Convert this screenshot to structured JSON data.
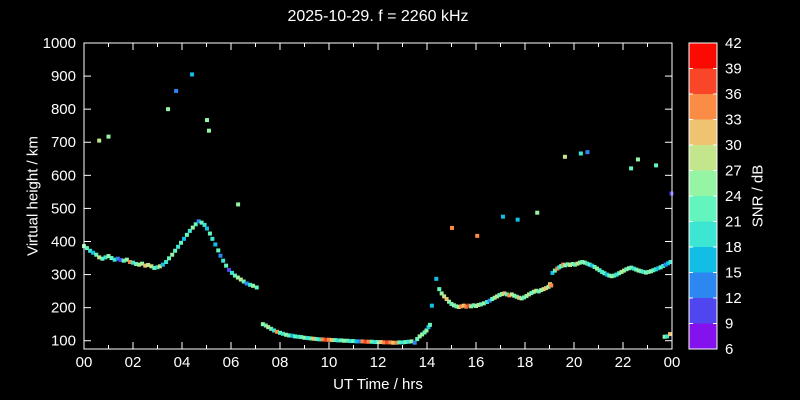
{
  "title": "2025-10-29. f = 2260 kHz",
  "chart_data": {
    "type": "scatter",
    "title": "2025-10-29. f = 2260 kHz",
    "xlabel": "UT Time / hrs",
    "ylabel": "Virtual height / km",
    "xlim": [
      0,
      24
    ],
    "ylim": [
      75,
      1000
    ],
    "grid": false,
    "background_color": "#000000",
    "text_color": "#ffffff",
    "marker": "square",
    "marker_size_px": 4,
    "x_ticks": {
      "major_values": [
        0,
        2,
        4,
        6,
        8,
        10,
        12,
        14,
        16,
        18,
        20,
        22,
        24
      ],
      "major_labels": [
        "00",
        "02",
        "04",
        "06",
        "08",
        "10",
        "12",
        "14",
        "16",
        "18",
        "20",
        "22",
        "00"
      ],
      "minor_step": 1
    },
    "y_ticks": {
      "values": [
        100,
        200,
        300,
        400,
        500,
        600,
        700,
        800,
        900,
        1000
      ],
      "labels": [
        "100",
        "200",
        "300",
        "400",
        "500",
        "600",
        "700",
        "800",
        "900",
        "1000"
      ]
    },
    "colorbar": {
      "label": "SNR / dB",
      "min": 6,
      "max": 42,
      "step": 3,
      "tick_labels": [
        "6",
        "9",
        "12",
        "15",
        "18",
        "21",
        "24",
        "27",
        "30",
        "33",
        "36",
        "39",
        "42"
      ],
      "colors_low_to_high": [
        "#8312ee",
        "#5046f0",
        "#2d87f0",
        "#12bee6",
        "#3ce6d2",
        "#64f5be",
        "#96f5a5",
        "#c3e68c",
        "#f0c371",
        "#fa8c46",
        "#fa4628",
        "#fa0a00"
      ]
    },
    "points_format": [
      "ut_hours",
      "virtual_height_km",
      "snr_db"
    ],
    "points": [
      [
        0.0,
        386,
        25
      ],
      [
        0.12,
        380,
        22
      ],
      [
        0.25,
        372,
        19
      ],
      [
        0.37,
        366,
        16
      ],
      [
        0.5,
        360,
        22
      ],
      [
        0.62,
        352,
        28
      ],
      [
        0.75,
        348,
        22
      ],
      [
        0.88,
        352,
        19
      ],
      [
        1.0,
        356,
        25
      ],
      [
        1.12,
        350,
        22
      ],
      [
        1.25,
        345,
        19
      ],
      [
        1.38,
        348,
        13
      ],
      [
        1.5,
        344,
        10
      ],
      [
        1.62,
        342,
        22
      ],
      [
        1.75,
        345,
        25
      ],
      [
        1.88,
        338,
        34
      ],
      [
        2.0,
        336,
        19
      ],
      [
        2.12,
        332,
        22
      ],
      [
        2.25,
        330,
        28
      ],
      [
        2.37,
        333,
        25
      ],
      [
        2.5,
        327,
        31
      ],
      [
        2.62,
        329,
        28
      ],
      [
        2.75,
        325,
        28
      ],
      [
        2.87,
        320,
        22
      ],
      [
        3.0,
        322,
        19
      ],
      [
        3.1,
        325,
        28
      ],
      [
        3.22,
        330,
        16
      ],
      [
        3.35,
        338,
        19
      ],
      [
        3.47,
        349,
        22
      ],
      [
        3.6,
        360,
        25
      ],
      [
        3.72,
        372,
        22
      ],
      [
        3.84,
        384,
        19
      ],
      [
        3.96,
        396,
        22
      ],
      [
        4.08,
        408,
        16
      ],
      [
        4.2,
        420,
        22
      ],
      [
        4.32,
        432,
        19
      ],
      [
        4.44,
        442,
        25
      ],
      [
        4.56,
        452,
        22
      ],
      [
        4.68,
        461,
        13
      ],
      [
        4.8,
        457,
        22
      ],
      [
        4.92,
        450,
        19
      ],
      [
        5.02,
        439,
        16
      ],
      [
        5.14,
        424,
        22
      ],
      [
        5.24,
        408,
        19
      ],
      [
        5.36,
        391,
        16
      ],
      [
        5.48,
        373,
        22
      ],
      [
        5.57,
        357,
        13
      ],
      [
        5.68,
        342,
        19
      ],
      [
        5.8,
        327,
        22
      ],
      [
        5.92,
        314,
        10
      ],
      [
        6.04,
        305,
        19
      ],
      [
        6.16,
        297,
        22
      ],
      [
        6.28,
        291,
        25
      ],
      [
        6.4,
        285,
        28
      ],
      [
        6.52,
        279,
        22
      ],
      [
        6.64,
        273,
        13
      ],
      [
        6.78,
        269,
        19
      ],
      [
        6.9,
        266,
        25
      ],
      [
        7.05,
        261,
        22
      ],
      [
        0.62,
        705,
        28
      ],
      [
        1.0,
        717,
        25
      ],
      [
        3.43,
        800,
        25
      ],
      [
        3.76,
        855,
        13
      ],
      [
        4.41,
        905,
        16
      ],
      [
        5.02,
        767,
        25
      ],
      [
        5.1,
        735,
        25
      ],
      [
        6.29,
        512,
        25
      ],
      [
        7.3,
        150,
        25
      ],
      [
        7.42,
        146,
        22
      ],
      [
        7.52,
        141,
        28
      ],
      [
        7.64,
        136,
        22
      ],
      [
        7.76,
        131,
        19
      ],
      [
        7.88,
        127,
        34
      ],
      [
        8.0,
        124,
        22
      ],
      [
        8.12,
        121,
        19
      ],
      [
        8.25,
        118,
        25
      ],
      [
        8.37,
        116,
        22
      ],
      [
        8.5,
        115,
        16
      ],
      [
        8.62,
        113,
        22
      ],
      [
        8.75,
        112,
        19
      ],
      [
        8.87,
        111,
        22
      ],
      [
        9.0,
        109,
        25
      ],
      [
        9.12,
        108,
        19
      ],
      [
        9.25,
        107,
        22
      ],
      [
        9.37,
        106,
        31
      ],
      [
        9.5,
        105,
        22
      ],
      [
        9.62,
        104,
        19
      ],
      [
        9.75,
        104,
        34
      ],
      [
        9.87,
        103,
        37
      ],
      [
        10.0,
        103,
        34
      ],
      [
        10.12,
        102,
        31
      ],
      [
        10.25,
        102,
        22
      ],
      [
        10.37,
        101,
        19
      ],
      [
        10.5,
        101,
        22
      ],
      [
        10.62,
        100,
        25
      ],
      [
        10.75,
        100,
        22
      ],
      [
        10.87,
        99,
        19
      ],
      [
        11.0,
        99,
        22
      ],
      [
        11.12,
        98,
        16
      ],
      [
        11.25,
        98,
        13
      ],
      [
        11.37,
        98,
        34
      ],
      [
        11.5,
        97,
        37
      ],
      [
        11.62,
        97,
        34
      ],
      [
        11.75,
        97,
        22
      ],
      [
        11.87,
        96,
        19
      ],
      [
        12.0,
        96,
        22
      ],
      [
        12.12,
        96,
        31
      ],
      [
        12.25,
        95,
        34
      ],
      [
        12.37,
        95,
        37
      ],
      [
        12.5,
        95,
        34
      ],
      [
        12.62,
        94,
        31
      ],
      [
        12.75,
        94,
        34
      ],
      [
        12.87,
        95,
        22
      ],
      [
        13.0,
        95,
        19
      ],
      [
        13.12,
        96,
        22
      ],
      [
        13.25,
        97,
        19
      ],
      [
        13.37,
        98,
        25
      ],
      [
        13.5,
        94,
        13
      ],
      [
        13.6,
        105,
        22
      ],
      [
        13.7,
        113,
        25
      ],
      [
        13.8,
        119,
        25
      ],
      [
        13.9,
        125,
        22
      ],
      [
        13.98,
        131,
        25
      ],
      [
        14.06,
        141,
        16
      ],
      [
        14.12,
        148,
        22
      ],
      [
        14.2,
        206,
        16
      ],
      [
        14.38,
        287,
        16
      ],
      [
        14.5,
        256,
        22
      ],
      [
        14.6,
        243,
        25
      ],
      [
        14.7,
        234,
        28
      ],
      [
        14.8,
        226,
        31
      ],
      [
        14.9,
        218,
        25
      ],
      [
        15.0,
        211,
        22
      ],
      [
        15.1,
        207,
        25
      ],
      [
        15.2,
        204,
        22
      ],
      [
        15.3,
        202,
        28
      ],
      [
        15.4,
        204,
        34
      ],
      [
        15.5,
        206,
        31
      ],
      [
        15.6,
        203,
        34
      ],
      [
        15.7,
        206,
        37
      ],
      [
        15.8,
        204,
        25
      ],
      [
        15.9,
        207,
        22
      ],
      [
        16.0,
        205,
        25
      ],
      [
        16.1,
        208,
        28
      ],
      [
        16.2,
        210,
        22
      ],
      [
        16.32,
        213,
        25
      ],
      [
        16.45,
        217,
        19
      ],
      [
        16.56,
        221,
        13
      ],
      [
        16.66,
        226,
        22
      ],
      [
        16.76,
        230,
        25
      ],
      [
        16.86,
        234,
        28
      ],
      [
        16.96,
        238,
        22
      ],
      [
        17.06,
        241,
        25
      ],
      [
        17.16,
        243,
        31
      ],
      [
        17.26,
        240,
        22
      ],
      [
        17.36,
        237,
        34
      ],
      [
        17.46,
        240,
        28
      ],
      [
        17.56,
        236,
        25
      ],
      [
        17.66,
        233,
        22
      ],
      [
        17.76,
        230,
        31
      ],
      [
        17.86,
        228,
        25
      ],
      [
        17.96,
        231,
        22
      ],
      [
        18.06,
        235,
        25
      ],
      [
        18.16,
        240,
        28
      ],
      [
        18.26,
        244,
        22
      ],
      [
        18.36,
        248,
        25
      ],
      [
        18.46,
        251,
        28
      ],
      [
        18.56,
        249,
        22
      ],
      [
        18.66,
        253,
        25
      ],
      [
        18.76,
        256,
        28
      ],
      [
        18.86,
        259,
        31
      ],
      [
        18.96,
        263,
        25
      ],
      [
        15.02,
        441,
        34
      ],
      [
        16.05,
        417,
        34
      ],
      [
        17.1,
        475,
        16
      ],
      [
        17.7,
        466,
        16
      ],
      [
        18.5,
        487,
        25
      ],
      [
        19.02,
        271,
        31
      ],
      [
        19.07,
        267,
        34
      ],
      [
        19.12,
        305,
        16
      ],
      [
        19.22,
        312,
        22
      ],
      [
        19.32,
        318,
        34
      ],
      [
        19.4,
        322,
        19
      ],
      [
        19.48,
        326,
        22
      ],
      [
        19.56,
        330,
        34
      ],
      [
        19.64,
        328,
        25
      ],
      [
        19.74,
        331,
        22
      ],
      [
        19.84,
        329,
        28
      ],
      [
        19.94,
        332,
        25
      ],
      [
        20.04,
        330,
        22
      ],
      [
        20.14,
        333,
        28
      ],
      [
        20.24,
        336,
        25
      ],
      [
        20.34,
        338,
        22
      ],
      [
        20.44,
        336,
        25
      ],
      [
        20.54,
        333,
        19
      ],
      [
        20.64,
        330,
        22
      ],
      [
        20.74,
        327,
        16
      ],
      [
        20.84,
        323,
        22
      ],
      [
        20.94,
        318,
        25
      ],
      [
        21.04,
        313,
        22
      ],
      [
        21.14,
        308,
        19
      ],
      [
        21.24,
        304,
        22
      ],
      [
        21.34,
        300,
        16
      ],
      [
        21.44,
        297,
        22
      ],
      [
        21.54,
        295,
        25
      ],
      [
        21.64,
        297,
        22
      ],
      [
        21.74,
        300,
        19
      ],
      [
        21.84,
        304,
        22
      ],
      [
        21.94,
        308,
        25
      ],
      [
        22.04,
        312,
        28
      ],
      [
        22.14,
        316,
        22
      ],
      [
        22.24,
        319,
        25
      ],
      [
        22.34,
        321,
        22
      ],
      [
        22.44,
        318,
        19
      ],
      [
        22.54,
        315,
        22
      ],
      [
        22.64,
        312,
        25
      ],
      [
        22.74,
        310,
        22
      ],
      [
        22.84,
        308,
        19
      ],
      [
        22.94,
        306,
        25
      ],
      [
        23.04,
        308,
        22
      ],
      [
        23.14,
        310,
        25
      ],
      [
        23.24,
        313,
        22
      ],
      [
        23.34,
        316,
        19
      ],
      [
        23.44,
        319,
        16
      ],
      [
        23.54,
        322,
        22
      ],
      [
        23.64,
        326,
        19
      ],
      [
        23.74,
        330,
        13
      ],
      [
        23.84,
        334,
        16
      ],
      [
        23.94,
        338,
        19
      ],
      [
        19.63,
        656,
        28
      ],
      [
        20.28,
        666,
        19
      ],
      [
        20.55,
        670,
        13
      ],
      [
        22.33,
        621,
        22
      ],
      [
        22.61,
        648,
        25
      ],
      [
        23.35,
        630,
        22
      ],
      [
        23.98,
        545,
        10
      ],
      [
        23.7,
        112,
        25
      ],
      [
        23.8,
        113,
        19
      ],
      [
        23.92,
        120,
        31
      ]
    ]
  }
}
